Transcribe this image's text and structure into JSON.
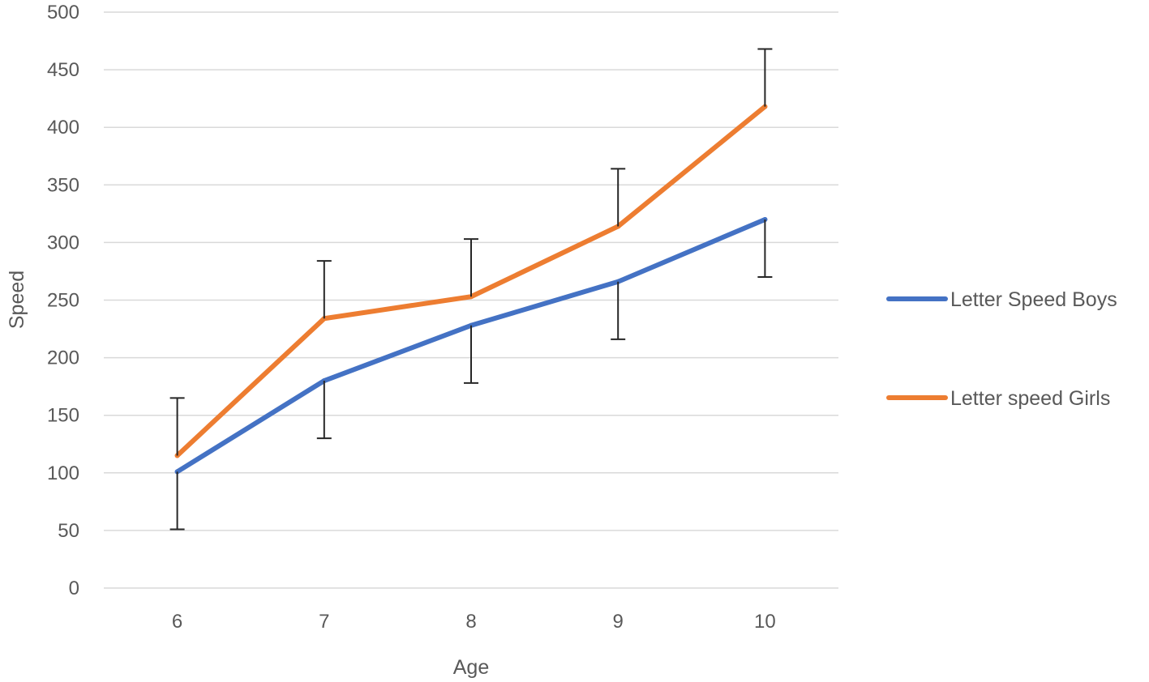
{
  "chart_data": {
    "type": "line",
    "title": "",
    "xlabel": "Age",
    "ylabel": "Speed",
    "categories": [
      "6",
      "7",
      "8",
      "9",
      "10"
    ],
    "ylim": [
      0,
      500
    ],
    "yticks": [
      0,
      50,
      100,
      150,
      200,
      250,
      300,
      350,
      400,
      450,
      500
    ],
    "grid": true,
    "legend_position": "right",
    "series": [
      {
        "name": "Letter Speed Boys",
        "color": "#4472c4",
        "values": [
          101,
          180,
          228,
          266,
          320
        ],
        "error_minus": [
          50,
          50,
          50,
          50,
          50
        ]
      },
      {
        "name": "Letter speed Girls",
        "color": "#ed7d31",
        "values": [
          115,
          234,
          253,
          314,
          418
        ],
        "error_plus": [
          50,
          50,
          50,
          50,
          50
        ]
      }
    ]
  }
}
